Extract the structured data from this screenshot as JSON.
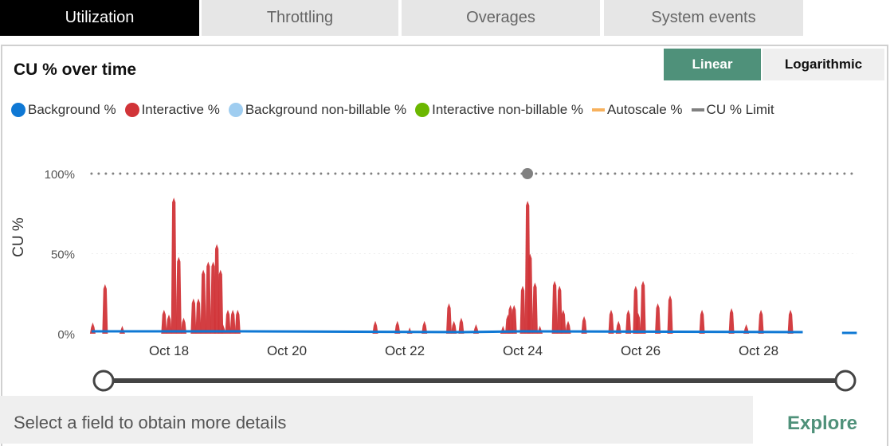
{
  "tabs": [
    {
      "label": "Utilization",
      "active": true
    },
    {
      "label": "Throttling",
      "active": false
    },
    {
      "label": "Overages",
      "active": false
    },
    {
      "label": "System events",
      "active": false
    }
  ],
  "card": {
    "title": "CU % over time",
    "scale_toggle": {
      "linear": "Linear",
      "logarithmic": "Logarithmic",
      "selected": "Linear"
    }
  },
  "footer": {
    "prompt": "Select a field to obtain more details",
    "explore_label": "Explore"
  },
  "colors": {
    "accent": "#4f917a",
    "background": "#0f78d4",
    "interactive": "#d13438",
    "background_non_billable": "#9fcdf0",
    "interactive_non_billable": "#6bb700",
    "autoscale": "#f7b15d",
    "limit": "#808080"
  },
  "chart_data": {
    "type": "area",
    "title": "CU % over time",
    "ylabel": "CU %",
    "xlabel": "",
    "ylim": [
      0,
      100
    ],
    "yticks": [
      "0%",
      "50%",
      "100%"
    ],
    "xticks": [
      "Oct 18",
      "Oct 20",
      "Oct 22",
      "Oct 24",
      "Oct 26",
      "Oct 28"
    ],
    "xrange": [
      "Oct 16 16:30",
      "Oct 29 16:00"
    ],
    "legend_position": "top-left",
    "legend": [
      {
        "name": "Background %",
        "marker": "dot",
        "color": "#0f78d4"
      },
      {
        "name": "Interactive %",
        "marker": "dot",
        "color": "#d13438"
      },
      {
        "name": "Background non-billable %",
        "marker": "dot",
        "color": "#9fcdf0"
      },
      {
        "name": "Interactive non-billable %",
        "marker": "dot",
        "color": "#6bb700"
      },
      {
        "name": "Autoscale %",
        "marker": "line",
        "color": "#f7b15d"
      },
      {
        "name": "CU % Limit",
        "marker": "line",
        "color": "#808080"
      }
    ],
    "series": [
      {
        "name": "Interactive %",
        "points": [
          [
            "Oct 16 17:00",
            7
          ],
          [
            "Oct 16 22:00",
            31
          ],
          [
            "Oct 17 05:00",
            5
          ],
          [
            "Oct 17 22:00",
            15
          ],
          [
            "Oct 18 00:00",
            12
          ],
          [
            "Oct 18 02:00",
            85
          ],
          [
            "Oct 18 04:00",
            48
          ],
          [
            "Oct 18 06:00",
            10
          ],
          [
            "Oct 18 10:00",
            22
          ],
          [
            "Oct 18 12:00",
            22
          ],
          [
            "Oct 18 14:00",
            40
          ],
          [
            "Oct 18 16:00",
            45
          ],
          [
            "Oct 18 18:00",
            45
          ],
          [
            "Oct 18 19:30",
            56
          ],
          [
            "Oct 18 21:00",
            40
          ],
          [
            "Oct 18 22:00",
            6
          ],
          [
            "Oct 19 00:00",
            15
          ],
          [
            "Oct 19 02:00",
            15
          ],
          [
            "Oct 19 04:00",
            15
          ],
          [
            "Oct 21 12:00",
            8
          ],
          [
            "Oct 21 21:00",
            8
          ],
          [
            "Oct 22 02:00",
            4
          ],
          [
            "Oct 22 08:00",
            8
          ],
          [
            "Oct 22 18:00",
            19
          ],
          [
            "Oct 22 20:00",
            8
          ],
          [
            "Oct 22 23:00",
            10
          ],
          [
            "Oct 23 05:00",
            6
          ],
          [
            "Oct 23 16:00",
            5
          ],
          [
            "Oct 23 18:00",
            12
          ],
          [
            "Oct 23 19:00",
            18
          ],
          [
            "Oct 23 20:30",
            18
          ],
          [
            "Oct 24 00:00",
            30
          ],
          [
            "Oct 24 02:00",
            83
          ],
          [
            "Oct 24 03:00",
            50
          ],
          [
            "Oct 24 05:00",
            32
          ],
          [
            "Oct 24 07:00",
            5
          ],
          [
            "Oct 24 13:00",
            33
          ],
          [
            "Oct 24 15:00",
            30
          ],
          [
            "Oct 24 16:30",
            15
          ],
          [
            "Oct 24 18:30",
            8
          ],
          [
            "Oct 25 01:00",
            11
          ],
          [
            "Oct 25 12:00",
            15
          ],
          [
            "Oct 25 15:00",
            8
          ],
          [
            "Oct 25 19:00",
            15
          ],
          [
            "Oct 25 22:00",
            30
          ],
          [
            "Oct 25 23:00",
            13
          ],
          [
            "Oct 26 01:00",
            33
          ],
          [
            "Oct 26 07:00",
            19
          ],
          [
            "Oct 26 12:00",
            24
          ],
          [
            "Oct 27 01:00",
            15
          ],
          [
            "Oct 27 13:00",
            16
          ],
          [
            "Oct 27 19:00",
            6
          ],
          [
            "Oct 28 01:00",
            15
          ],
          [
            "Oct 28 13:00",
            15
          ]
        ]
      },
      {
        "name": "Background %",
        "segments": [
          [
            [
              "Oct 16 16:30",
              1.5
            ],
            [
              "Oct 19 06:00",
              1.5
            ],
            [
              "Oct 23 00:00",
              1.0
            ],
            [
              "Oct 24 00:00",
              1.5
            ],
            [
              "Oct 28 18:00",
              1.0
            ]
          ],
          [
            [
              "Oct 29 10:00",
              0.5
            ],
            [
              "Oct 29 16:00",
              0.5
            ]
          ]
        ]
      },
      {
        "name": "CU % Limit",
        "value": 100
      }
    ]
  }
}
